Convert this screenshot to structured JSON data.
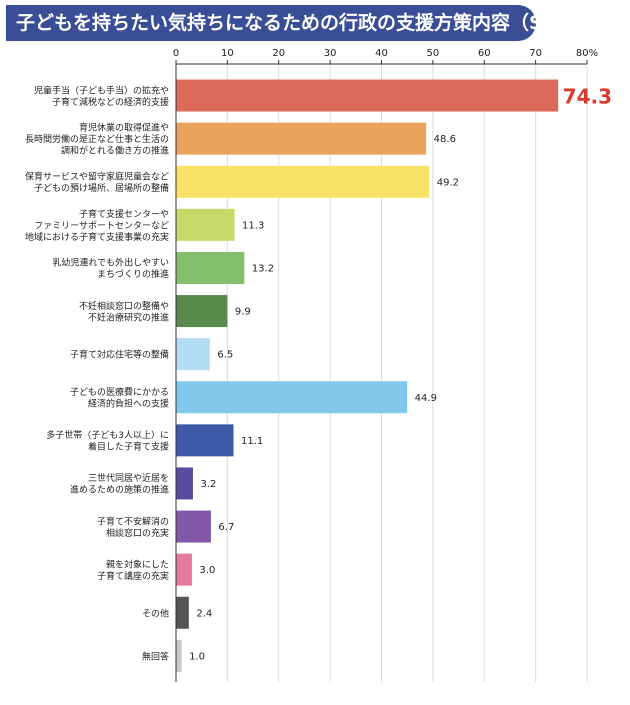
{
  "title": "子どもを持ちたい気持ちになるための行政の支援方策内容（SA）",
  "chart_data": {
    "type": "bar",
    "orientation": "horizontal",
    "title": "子どもを持ちたい気持ちになるための行政の支援方策内容（SA）",
    "xlim": [
      0,
      80
    ],
    "xticks": [
      "0",
      "10",
      "20",
      "30",
      "40",
      "50",
      "60",
      "70",
      "80%"
    ],
    "grid": true,
    "categories": [
      [
        "児童手当（子ども手当）の拡充や",
        "子育て減税などの経済的支援"
      ],
      [
        "育児休業の取得促進や",
        "長時間労働の是正など仕事と生活の",
        "調和がとれる働き方の推進"
      ],
      [
        "保育サービスや留守家庭児童会など",
        "子どもの預け場所、居場所の整備"
      ],
      [
        "子育て支援センターや",
        "ファミリーサポートセンターなど",
        "地域における子育て支援事業の充実"
      ],
      [
        "乳幼児連れでも外出しやすい",
        "まちづくりの推進"
      ],
      [
        "不妊相談窓口の整備や",
        "不妊治療研究の推進"
      ],
      [
        "子育て対応住宅等の整備"
      ],
      [
        "子どもの医療費にかかる",
        "経済的負担への支援"
      ],
      [
        "多子世帯（子ども3人以上）に",
        "着目した子育て支援"
      ],
      [
        "三世代同居や近居を",
        "進めるための施策の推進"
      ],
      [
        "子育て不安解消の",
        "相談窓口の充実"
      ],
      [
        "親を対象にした",
        "子育て講座の充実"
      ],
      [
        "その他"
      ],
      [
        "無回答"
      ]
    ],
    "values": [
      74.3,
      48.6,
      49.2,
      11.3,
      13.2,
      9.9,
      6.5,
      44.9,
      11.1,
      3.2,
      6.7,
      3.0,
      2.4,
      1.0
    ],
    "value_labels": [
      "74.3",
      "48.6",
      "49.2",
      "11.3",
      "13.2",
      "9.9",
      "6.5",
      "44.9",
      "11.1",
      "3.2",
      "6.7",
      "3.0",
      "2.4",
      "1.0"
    ],
    "bar_colors": [
      "#dc6a5a",
      "#eba35b",
      "#f9e066",
      "#c5d868",
      "#84bf6b",
      "#588a4c",
      "#b3ddf5",
      "#82c8ec",
      "#3f5aa8",
      "#574b9b",
      "#8458a8",
      "#e57aa0",
      "#545454",
      "#c8c8c8"
    ],
    "highlight_color": "#d9392e"
  }
}
